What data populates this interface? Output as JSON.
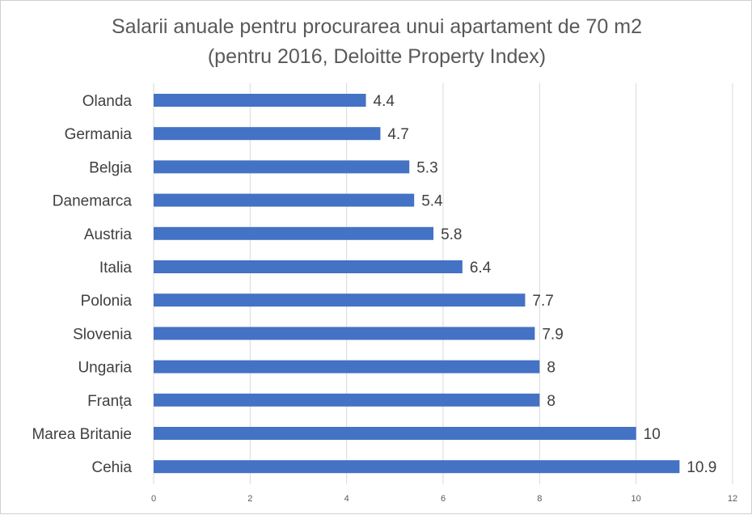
{
  "chart_data": {
    "type": "bar",
    "orientation": "horizontal",
    "title": [
      "Salarii anuale pentru procurarea unui apartament de 70 m2",
      "(pentru 2016, Deloitte Property Index)"
    ],
    "categories": [
      "Olanda",
      "Germania",
      "Belgia",
      "Danemarca",
      "Austria",
      "Italia",
      "Polonia",
      "Slovenia",
      "Ungaria",
      "Franța",
      "Marea Britanie",
      "Cehia"
    ],
    "values": [
      4.4,
      4.7,
      5.3,
      5.4,
      5.8,
      6.4,
      7.7,
      7.9,
      8,
      8,
      10,
      10.9
    ],
    "data_labels": [
      "4.4",
      "4.7",
      "5.3",
      "5.4",
      "5.8",
      "6.4",
      "7.7",
      "7.9",
      "8",
      "8",
      "10",
      "10.9"
    ],
    "xticks": [
      "0",
      "2",
      "4",
      "6",
      "8",
      "10",
      "12"
    ],
    "xlim": [
      0,
      12
    ],
    "grid": true,
    "bar_color": "#4472c4",
    "legend": "none"
  }
}
